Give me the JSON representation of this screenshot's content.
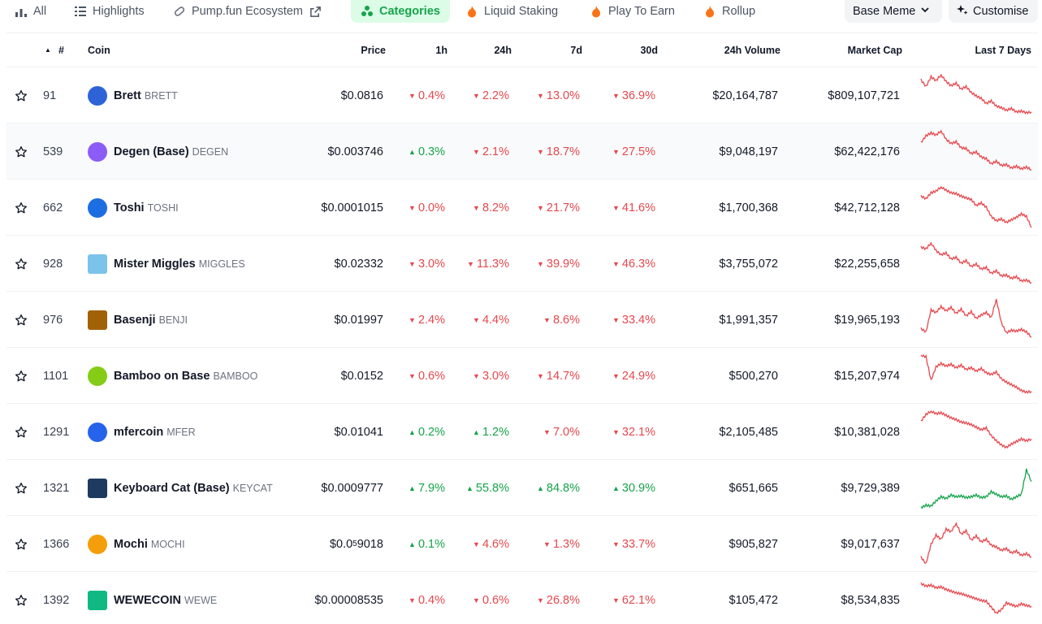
{
  "tabs": [
    {
      "label": "All",
      "icon": "bar-chart-icon"
    },
    {
      "label": "Highlights",
      "icon": "list-icon"
    },
    {
      "label": "Pump.fun Ecosystem",
      "icon": "pill-icon",
      "external": true
    },
    {
      "label": "Categories",
      "icon": "grid-icon",
      "active": true
    },
    {
      "label": "Liquid Staking",
      "icon": "fire-icon"
    },
    {
      "label": "Play To Earn",
      "icon": "fire-icon"
    },
    {
      "label": "Rollup",
      "icon": "fire-icon"
    }
  ],
  "category_dropdown": {
    "label": "Base Meme",
    "icon": "chevron-down-icon"
  },
  "customise_button": {
    "label": "Customise",
    "icon": "sparkle-icon"
  },
  "colors": {
    "up": "#16a34a",
    "down": "#e5484d",
    "accent_bg": "#dcfce7"
  },
  "columns": {
    "rank": "#",
    "coin": "Coin",
    "price": "Price",
    "h1": "1h",
    "h24": "24h",
    "d7": "7d",
    "d30": "30d",
    "volume": "24h Volume",
    "mcap": "Market Cap",
    "spark": "Last 7 Days"
  },
  "rows": [
    {
      "rank": "91",
      "name": "Brett",
      "symbol": "BRETT",
      "price": "$0.0816",
      "h1": {
        "v": "0.4%",
        "dir": "down"
      },
      "h24": {
        "v": "2.2%",
        "dir": "down"
      },
      "d7": {
        "v": "13.0%",
        "dir": "down"
      },
      "d30": {
        "v": "36.9%",
        "dir": "down"
      },
      "volume": "$20,164,787",
      "mcap": "$809,107,721",
      "logo": "#2e63d8",
      "spark": [
        0.88,
        0.72,
        0.95,
        0.86,
        1.0,
        0.84,
        0.74,
        0.8,
        0.66,
        0.72,
        0.58,
        0.5,
        0.44,
        0.32,
        0.38,
        0.26,
        0.22,
        0.16,
        0.2,
        0.12,
        0.14,
        0.1,
        0.12
      ],
      "trend": "down"
    },
    {
      "rank": "539",
      "name": "Degen (Base)",
      "symbol": "DEGEN",
      "price": "$0.003746",
      "h1": {
        "v": "0.3%",
        "dir": "up"
      },
      "h24": {
        "v": "2.1%",
        "dir": "down"
      },
      "d7": {
        "v": "18.7%",
        "dir": "down"
      },
      "d30": {
        "v": "27.5%",
        "dir": "down"
      },
      "volume": "$9,048,197",
      "mcap": "$62,422,176",
      "logo": "#8b5cf6",
      "spark": [
        0.72,
        0.88,
        0.95,
        0.9,
        1.0,
        0.8,
        0.7,
        0.74,
        0.6,
        0.58,
        0.46,
        0.5,
        0.38,
        0.34,
        0.22,
        0.28,
        0.18,
        0.2,
        0.12,
        0.16,
        0.1,
        0.14,
        0.08
      ],
      "trend": "down"
    },
    {
      "rank": "662",
      "name": "Toshi",
      "symbol": "TOSHI",
      "price": "$0.0001015",
      "h1": {
        "v": "0.0%",
        "dir": "down"
      },
      "h24": {
        "v": "8.2%",
        "dir": "down"
      },
      "d7": {
        "v": "21.7%",
        "dir": "down"
      },
      "d30": {
        "v": "41.6%",
        "dir": "down"
      },
      "volume": "$1,700,368",
      "mcap": "$42,712,128",
      "logo": "#1d6ee0",
      "spark": [
        0.78,
        0.72,
        0.86,
        0.9,
        1.0,
        0.92,
        0.86,
        0.84,
        0.78,
        0.74,
        0.7,
        0.56,
        0.62,
        0.52,
        0.3,
        0.2,
        0.24,
        0.16,
        0.22,
        0.28,
        0.36,
        0.3,
        0.04
      ],
      "trend": "down"
    },
    {
      "rank": "928",
      "name": "Mister Miggles",
      "symbol": "MIGGLES",
      "price": "$0.02332",
      "h1": {
        "v": "3.0%",
        "dir": "down"
      },
      "h24": {
        "v": "11.3%",
        "dir": "down"
      },
      "d7": {
        "v": "39.9%",
        "dir": "down"
      },
      "d30": {
        "v": "46.3%",
        "dir": "down"
      },
      "volume": "$3,755,072",
      "mcap": "$22,255,658",
      "logo": "#7cc3ea",
      "square": true,
      "spark": [
        0.9,
        0.86,
        1.0,
        0.82,
        0.72,
        0.76,
        0.62,
        0.66,
        0.52,
        0.58,
        0.44,
        0.5,
        0.38,
        0.42,
        0.28,
        0.34,
        0.22,
        0.24,
        0.16,
        0.2,
        0.1,
        0.12,
        0.06
      ],
      "trend": "down"
    },
    {
      "rank": "976",
      "name": "Basenji",
      "symbol": "BENJI",
      "price": "$0.01997",
      "h1": {
        "v": "2.4%",
        "dir": "down"
      },
      "h24": {
        "v": "4.4%",
        "dir": "down"
      },
      "d7": {
        "v": "8.6%",
        "dir": "down"
      },
      "d30": {
        "v": "33.4%",
        "dir": "down"
      },
      "volume": "$1,991,357",
      "mcap": "$19,965,193",
      "logo": "#a16207",
      "square": true,
      "spark": [
        0.3,
        0.22,
        0.74,
        0.68,
        0.82,
        0.72,
        0.8,
        0.66,
        0.76,
        0.6,
        0.7,
        0.54,
        0.62,
        0.68,
        0.56,
        1.0,
        0.44,
        0.2,
        0.26,
        0.24,
        0.28,
        0.22,
        0.1
      ],
      "trend": "down"
    },
    {
      "rank": "1101",
      "name": "Bamboo on Base",
      "symbol": "BAMBOO",
      "price": "$0.0152",
      "h1": {
        "v": "0.6%",
        "dir": "down"
      },
      "h24": {
        "v": "3.0%",
        "dir": "down"
      },
      "d7": {
        "v": "14.7%",
        "dir": "down"
      },
      "d30": {
        "v": "24.9%",
        "dir": "down"
      },
      "volume": "$500,270",
      "mcap": "$15,207,974",
      "logo": "#84cc16",
      "spark": [
        1.0,
        0.96,
        0.4,
        0.72,
        0.8,
        0.74,
        0.78,
        0.7,
        0.76,
        0.66,
        0.7,
        0.62,
        0.68,
        0.58,
        0.54,
        0.6,
        0.44,
        0.36,
        0.3,
        0.24,
        0.16,
        0.12,
        0.14
      ],
      "trend": "down"
    },
    {
      "rank": "1291",
      "name": "mfercoin",
      "symbol": "MFER",
      "price": "$0.01041",
      "h1": {
        "v": "0.2%",
        "dir": "up"
      },
      "h24": {
        "v": "1.2%",
        "dir": "up"
      },
      "d7": {
        "v": "7.0%",
        "dir": "down"
      },
      "d30": {
        "v": "32.1%",
        "dir": "down"
      },
      "volume": "$2,105,485",
      "mcap": "$10,381,028",
      "logo": "#2563eb",
      "spark": [
        0.76,
        0.92,
        1.0,
        0.94,
        0.96,
        0.9,
        0.84,
        0.8,
        0.74,
        0.72,
        0.68,
        0.62,
        0.56,
        0.6,
        0.42,
        0.3,
        0.2,
        0.14,
        0.22,
        0.28,
        0.34,
        0.3,
        0.34
      ],
      "trend": "down"
    },
    {
      "rank": "1321",
      "name": "Keyboard Cat (Base)",
      "symbol": "KEYCAT",
      "price": "$0.0009777",
      "h1": {
        "v": "7.9%",
        "dir": "up"
      },
      "h24": {
        "v": "55.8%",
        "dir": "up"
      },
      "d7": {
        "v": "84.8%",
        "dir": "up"
      },
      "d30": {
        "v": "30.9%",
        "dir": "up"
      },
      "volume": "$651,665",
      "mcap": "$9,729,389",
      "logo": "#1e3a5f",
      "square": true,
      "spark": [
        0.04,
        0.1,
        0.08,
        0.2,
        0.3,
        0.26,
        0.34,
        0.3,
        0.32,
        0.28,
        0.3,
        0.34,
        0.28,
        0.3,
        0.42,
        0.36,
        0.3,
        0.32,
        0.24,
        0.3,
        0.36,
        0.94,
        0.66
      ],
      "trend": "up"
    },
    {
      "rank": "1366",
      "name": "Mochi",
      "symbol": "MOCHI",
      "price_prefix": "$0.0",
      "price_sub": "5",
      "price_suffix": "9018",
      "h1": {
        "v": "0.1%",
        "dir": "up"
      },
      "h24": {
        "v": "4.6%",
        "dir": "down"
      },
      "d7": {
        "v": "1.3%",
        "dir": "down"
      },
      "d30": {
        "v": "33.7%",
        "dir": "down"
      },
      "volume": "$905,827",
      "mcap": "$9,017,637",
      "logo": "#f59e0b",
      "spark": [
        0.2,
        0.04,
        0.5,
        0.72,
        0.62,
        0.86,
        0.8,
        1.0,
        0.74,
        0.82,
        0.6,
        0.7,
        0.56,
        0.62,
        0.48,
        0.44,
        0.36,
        0.4,
        0.3,
        0.34,
        0.24,
        0.28,
        0.2
      ],
      "trend": "down"
    },
    {
      "rank": "1392",
      "name": "WEWECOIN",
      "symbol": "WEWE",
      "price": "$0.00008535",
      "h1": {
        "v": "0.4%",
        "dir": "down"
      },
      "h24": {
        "v": "0.6%",
        "dir": "down"
      },
      "d7": {
        "v": "26.8%",
        "dir": "down"
      },
      "d30": {
        "v": "62.1%",
        "dir": "down"
      },
      "volume": "$105,472",
      "mcap": "$8,534,835",
      "logo": "#10b981",
      "square": true,
      "spark": [
        0.9,
        0.84,
        0.86,
        0.8,
        0.82,
        0.76,
        0.72,
        0.68,
        0.66,
        0.62,
        0.58,
        0.54,
        0.5,
        0.48,
        0.34,
        0.2,
        0.28,
        0.44,
        0.4,
        0.36,
        0.42,
        0.38,
        0.36
      ],
      "trend": "down"
    }
  ]
}
